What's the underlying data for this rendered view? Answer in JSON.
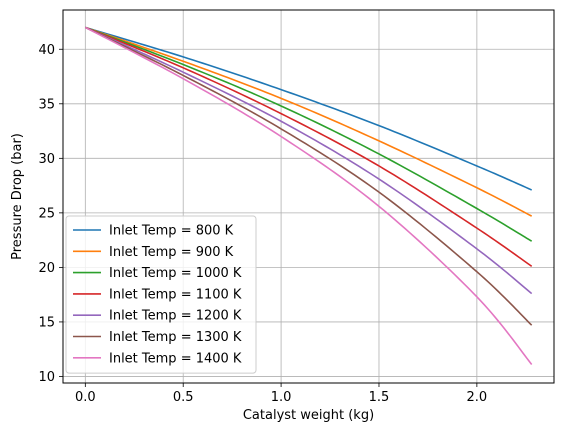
{
  "chart_data": {
    "type": "line",
    "xlabel": "Catalyst weight (kg)",
    "ylabel": "Pressure Drop (bar)",
    "xlim": [
      -0.114,
      2.394
    ],
    "ylim": [
      9.4,
      43.6
    ],
    "xticks": [
      0.0,
      0.5,
      1.0,
      1.5,
      2.0
    ],
    "xtick_labels": [
      "0.0",
      "0.5",
      "1.0",
      "1.5",
      "2.0"
    ],
    "yticks": [
      10,
      15,
      20,
      25,
      30,
      35,
      40
    ],
    "ytick_labels": [
      "10",
      "15",
      "20",
      "25",
      "30",
      "35",
      "40"
    ],
    "grid": true,
    "legend_position": "lower-left",
    "x": [
      0.0,
      0.5,
      1.0,
      1.5,
      2.0,
      2.28
    ],
    "series": [
      {
        "name": "Inlet Temp = 800 K",
        "color": "#1f77b4",
        "values": [
          42.0,
          39.3,
          36.3,
          33.0,
          29.3,
          27.1
        ]
      },
      {
        "name": "Inlet Temp = 900 K",
        "color": "#ff7f0e",
        "values": [
          42.0,
          38.9,
          35.5,
          31.6,
          27.3,
          24.7
        ]
      },
      {
        "name": "Inlet Temp = 1000 K",
        "color": "#2ca02c",
        "values": [
          42.0,
          38.6,
          34.8,
          30.4,
          25.4,
          22.4
        ]
      },
      {
        "name": "Inlet Temp = 1100 K",
        "color": "#d62728",
        "values": [
          42.0,
          38.3,
          34.1,
          29.3,
          23.6,
          20.1
        ]
      },
      {
        "name": "Inlet Temp = 1200 K",
        "color": "#9467bd",
        "values": [
          42.0,
          37.9,
          33.4,
          28.1,
          21.7,
          17.6
        ]
      },
      {
        "name": "Inlet Temp = 1300 K",
        "color": "#8c564b",
        "values": [
          42.0,
          37.6,
          32.7,
          26.9,
          19.6,
          14.7
        ]
      },
      {
        "name": "Inlet Temp = 1400 K",
        "color": "#e377c2",
        "values": [
          42.0,
          37.3,
          32.0,
          25.6,
          17.3,
          11.1
        ]
      }
    ]
  }
}
